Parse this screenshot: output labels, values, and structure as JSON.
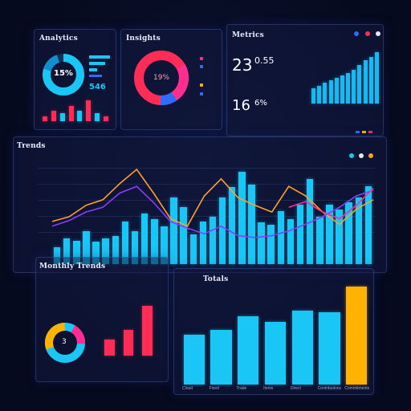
{
  "panels": {
    "analytics": {
      "title": "Analytics",
      "donut_label": "15%",
      "stat": "546"
    },
    "insights": {
      "title": "Insights",
      "donut_label": "19%",
      "legend": [
        "",
        "",
        "",
        ""
      ]
    },
    "metrics": {
      "title": "Metrics",
      "stat_a": "23",
      "stat_a_small": "0.55",
      "stat_b": "16",
      "stat_b_small": "6%"
    },
    "trends": {
      "title": "Trends"
    },
    "monthly": {
      "title": "Monthly Trends",
      "donut_label": "3"
    },
    "totals": {
      "title": "Totals",
      "xlabels": [
        "Cloud",
        "Fixed",
        "Trade",
        "Items",
        "Direct",
        "Contributions",
        "Commitments"
      ]
    }
  },
  "colors": {
    "cyan": "#19c6f5",
    "blue": "#2f6bff",
    "red": "#ff2d55",
    "pink": "#ff2d8f",
    "orange": "#ffa11a",
    "purple": "#8a3cff",
    "yellow": "#ffb300"
  },
  "chart_data": [
    {
      "type": "bar",
      "id": "analytics-bars",
      "values": [
        2,
        4,
        3,
        6,
        4,
        8,
        3,
        2
      ],
      "colors": [
        "#ff2d55",
        "#ff2d55",
        "#19c6f5",
        "#ff2d55",
        "#19c6f5",
        "#ff2d55",
        "#19c6f5",
        "#ff2d55"
      ]
    },
    {
      "type": "bar",
      "id": "metrics-bars",
      "values": [
        3,
        3.5,
        4,
        4.5,
        5,
        5.5,
        6,
        6.5,
        7.5,
        8.5,
        9,
        10
      ]
    },
    {
      "type": "bar",
      "id": "trends-bars",
      "values": [
        14,
        22,
        20,
        28,
        19,
        22,
        24,
        36,
        28,
        43,
        38,
        32,
        56,
        48,
        25,
        36,
        40,
        56,
        65,
        78,
        67,
        35,
        33,
        45,
        38,
        50,
        72,
        40,
        50,
        46,
        52,
        56,
        66
      ],
      "series": [
        {
          "name": "",
          "color": "#ff9f2e",
          "values": [
            45,
            50,
            62,
            68,
            85,
            100,
            75,
            48,
            40,
            72,
            90,
            70,
            62,
            55,
            82,
            72,
            55,
            42,
            58,
            68
          ]
        },
        {
          "name": "",
          "color": "#8a3cff",
          "values": [
            40,
            46,
            55,
            60,
            75,
            82,
            65,
            45,
            38,
            32,
            40,
            30,
            28,
            30,
            35,
            42,
            50,
            60,
            72,
            78
          ]
        },
        {
          "name": "",
          "color": "#ff2d8f",
          "values": [
            null,
            null,
            null,
            null,
            null,
            null,
            null,
            null,
            null,
            null,
            null,
            null,
            null,
            null,
            60,
            66,
            55,
            48,
            62,
            80
          ]
        }
      ]
    },
    {
      "type": "bar",
      "id": "monthly-bars",
      "values": [
        20,
        32,
        62
      ],
      "colors": [
        "#ff2d55",
        "#ff2d55",
        "#ff2d55"
      ]
    },
    {
      "type": "bar",
      "id": "totals-bars",
      "categories": [
        "Cloud",
        "Fixed",
        "Trade",
        "Items",
        "Direct",
        "Contributions",
        "Commitments"
      ],
      "values": [
        62,
        68,
        85,
        78,
        92,
        90,
        122
      ],
      "colors": [
        "#19c6f5",
        "#19c6f5",
        "#19c6f5",
        "#19c6f5",
        "#19c6f5",
        "#19c6f5",
        "#ffb300"
      ]
    }
  ]
}
